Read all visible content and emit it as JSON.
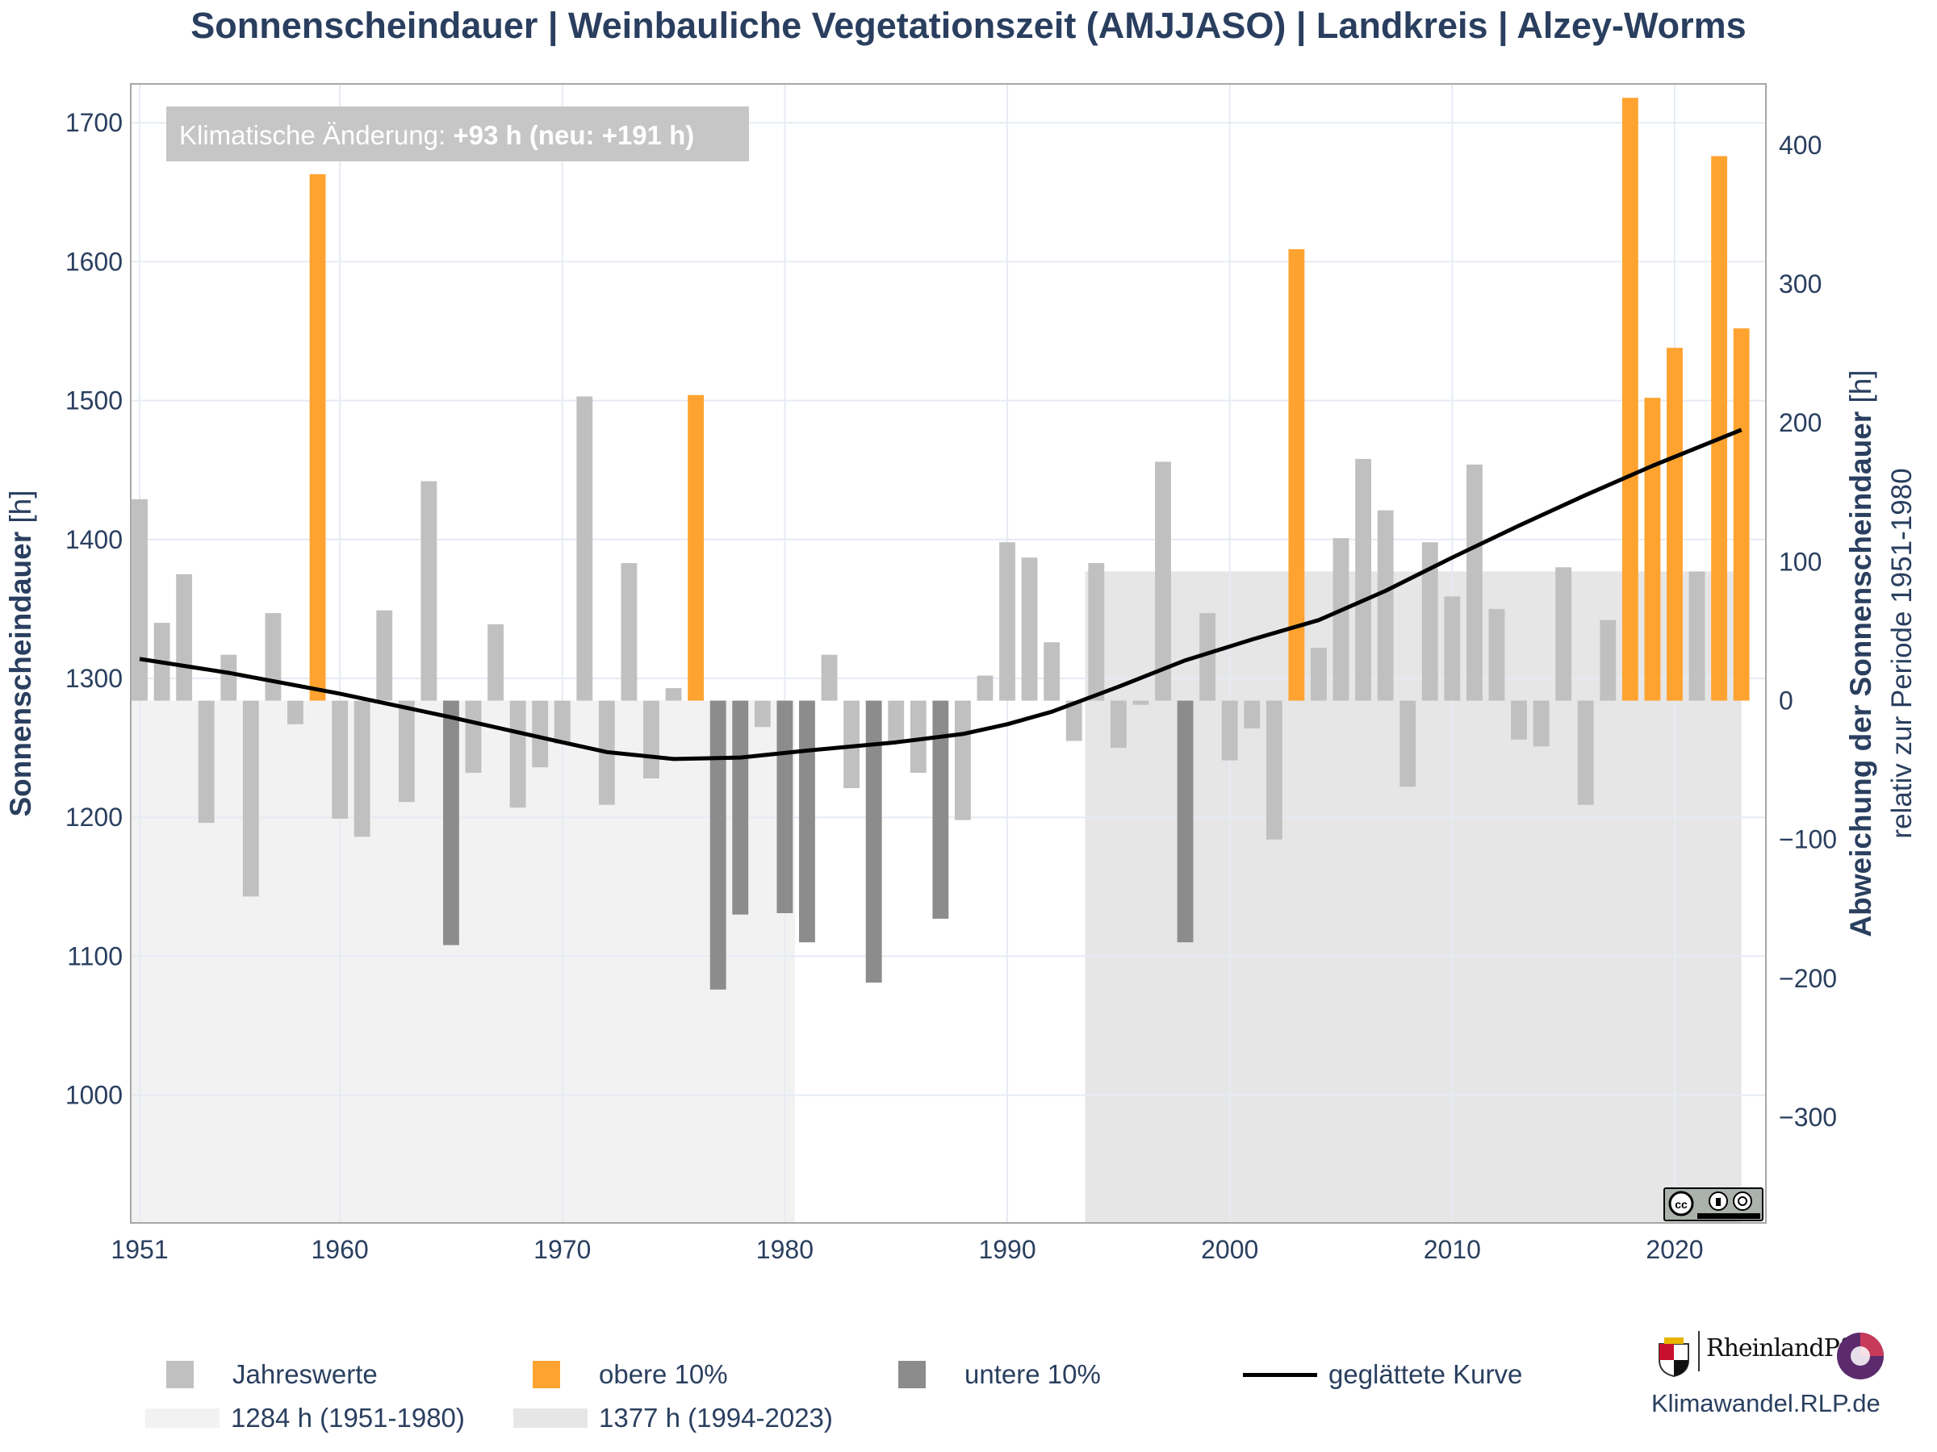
{
  "chart_data": {
    "type": "bar",
    "title": "Sonnenscheindauer | Weinbauliche Vegetationszeit (AMJJASO) | Landkreis | Alzey-Worms",
    "ylabel": "Sonnenscheindauer",
    "ylabel_unit": "[h]",
    "y2label": "Abweichung der Sonnenscheindauer",
    "y2label_unit": "[h]",
    "y2sublabel": "relativ zur Periode 1951-1980",
    "annotation_prefix": "Klimatische Änderung: ",
    "annotation_value": "+93 h (neu: +191 h)",
    "xlim": [
      1950.6,
      2024.1
    ],
    "ylim": [
      908,
      1728
    ],
    "y2lim": [
      -376,
      444
    ],
    "xticks": [
      1951,
      1960,
      1970,
      1980,
      1990,
      2000,
      2010,
      2020
    ],
    "yticks": [
      1000,
      1100,
      1200,
      1300,
      1400,
      1500,
      1600,
      1700
    ],
    "y2ticks": [
      -300,
      -200,
      -100,
      0,
      100,
      200,
      300,
      400
    ],
    "y2tick_labels": [
      "−300",
      "−200",
      "−100",
      "0",
      "100",
      "200",
      "300",
      "400"
    ],
    "baseline_1951_1980": 1284,
    "baseline_1994_2023": 1377,
    "years": [
      1951,
      1952,
      1953,
      1954,
      1955,
      1956,
      1957,
      1958,
      1959,
      1960,
      1961,
      1962,
      1963,
      1964,
      1965,
      1966,
      1967,
      1968,
      1969,
      1970,
      1971,
      1972,
      1973,
      1974,
      1975,
      1976,
      1977,
      1978,
      1979,
      1980,
      1981,
      1982,
      1983,
      1984,
      1985,
      1986,
      1987,
      1988,
      1989,
      1990,
      1991,
      1992,
      1993,
      1994,
      1995,
      1996,
      1997,
      1998,
      1999,
      2000,
      2001,
      2002,
      2003,
      2004,
      2005,
      2006,
      2007,
      2008,
      2009,
      2010,
      2011,
      2012,
      2013,
      2014,
      2015,
      2016,
      2017,
      2018,
      2019,
      2020,
      2021,
      2022,
      2023
    ],
    "values": [
      1429,
      1340,
      1375,
      1196,
      1317,
      1143,
      1347,
      1267,
      1663,
      1199,
      1186,
      1349,
      1211,
      1442,
      1108,
      1232,
      1339,
      1207,
      1236,
      1253,
      1503,
      1209,
      1383,
      1228,
      1293,
      1504,
      1076,
      1130,
      1265,
      1131,
      1110,
      1317,
      1221,
      1081,
      1254,
      1232,
      1127,
      1198,
      1302,
      1398,
      1387,
      1326,
      1255,
      1383,
      1250,
      1281,
      1456,
      1110,
      1347,
      1241,
      1264,
      1184,
      1609,
      1322,
      1401,
      1458,
      1421,
      1222,
      1398,
      1359,
      1454,
      1350,
      1256,
      1251,
      1380,
      1209,
      1342,
      1718,
      1502,
      1538,
      1377,
      1676,
      1552
    ],
    "category": [
      "n",
      "n",
      "n",
      "n",
      "n",
      "n",
      "n",
      "n",
      "o",
      "n",
      "n",
      "n",
      "n",
      "n",
      "u",
      "n",
      "n",
      "n",
      "n",
      "n",
      "n",
      "n",
      "n",
      "n",
      "n",
      "o",
      "u",
      "u",
      "n",
      "u",
      "u",
      "n",
      "n",
      "u",
      "n",
      "n",
      "u",
      "n",
      "n",
      "n",
      "n",
      "n",
      "n",
      "n",
      "n",
      "n",
      "n",
      "u",
      "n",
      "n",
      "n",
      "n",
      "o",
      "n",
      "n",
      "n",
      "n",
      "n",
      "n",
      "n",
      "n",
      "n",
      "n",
      "n",
      "n",
      "n",
      "n",
      "o",
      "o",
      "o",
      "n",
      "o",
      "o"
    ],
    "smoothed": {
      "x": [
        1951,
        1955,
        1960,
        1965,
        1970,
        1972,
        1975,
        1978,
        1981,
        1985,
        1988,
        1990,
        1992,
        1995,
        1998,
        2001,
        2004,
        2007,
        2010,
        2013,
        2016,
        2019,
        2023
      ],
      "y": [
        1314,
        1304,
        1289,
        1272,
        1254,
        1247,
        1242,
        1243,
        1248,
        1254,
        1260,
        1267,
        1276,
        1294,
        1313,
        1328,
        1342,
        1363,
        1387,
        1410,
        1432,
        1453,
        1479
      ]
    },
    "colors": {
      "normal": "#c0c0c0",
      "upper": "#ffa330",
      "lower": "#8c8c8c",
      "smooth": "#000000",
      "band_1951_1980": "#f2f2f2",
      "band_1994_2023": "#e6e6e6"
    },
    "legend": {
      "jahreswerte": "Jahreswerte",
      "obere": "obere 10%",
      "untere": "untere 10%",
      "geglaettet": "geglättete Kurve",
      "band1": "1284 h (1951-1980)",
      "band2": "1377 h (1994-2023)"
    }
  },
  "branding": {
    "state_name": "RheinlandPfalz",
    "site": "Klimawandel.RLP.de",
    "license_icon": "cc-by-sa-icon",
    "coat_of_arms_icon": "coat-of-arms-icon",
    "klimafolgen_icon": "klimafolgen-anpassung-icon"
  }
}
